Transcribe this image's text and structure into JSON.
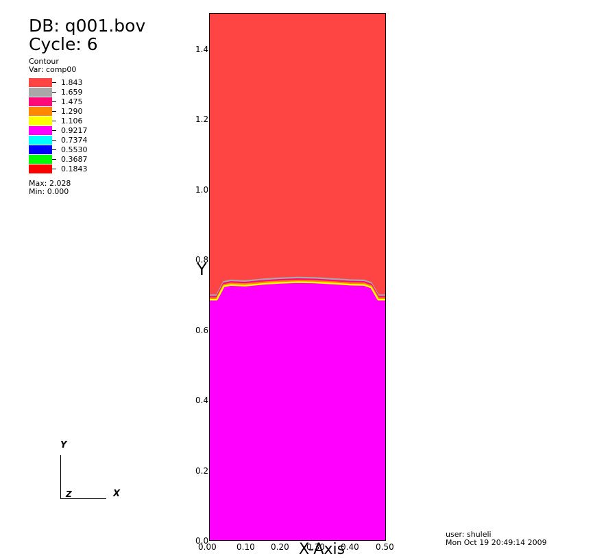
{
  "header": {
    "db_title": "DB: q001.bov",
    "cycle": "Cycle: 6"
  },
  "legend": {
    "heading": "Contour",
    "variable": "Var: comp00",
    "levels": [
      {
        "value": "1.843",
        "color": "#ff4444"
      },
      {
        "value": "1.659",
        "color": "#a8a8a8"
      },
      {
        "value": "1.475",
        "color": "#ff0a78"
      },
      {
        "value": "1.290",
        "color": "#ff8800"
      },
      {
        "value": "1.106",
        "color": "#ffff00"
      },
      {
        "value": "0.9217",
        "color": "#ff00ff"
      },
      {
        "value": "0.7374",
        "color": "#00ffff"
      },
      {
        "value": "0.5530",
        "color": "#0000ff"
      },
      {
        "value": "0.3687",
        "color": "#00ff00"
      },
      {
        "value": "0.1843",
        "color": "#ff0000"
      }
    ],
    "max": "Max: 2.028",
    "min": "Min: 0.000"
  },
  "plot": {
    "upper_color": "#ff4444",
    "lower_color": "#ff00ff",
    "interface_band_colors": [
      "#a8a8a8",
      "#ff0a78",
      "#ff8800",
      "#ffff00"
    ],
    "xlim": [
      0.0,
      0.5
    ],
    "ylim": [
      0.0,
      1.5
    ],
    "interface_profile": [
      [
        0.0,
        0.7
      ],
      [
        0.02,
        0.7
      ],
      [
        0.04,
        0.738
      ],
      [
        0.06,
        0.742
      ],
      [
        0.1,
        0.74
      ],
      [
        0.15,
        0.745
      ],
      [
        0.2,
        0.748
      ],
      [
        0.25,
        0.75
      ],
      [
        0.3,
        0.749
      ],
      [
        0.35,
        0.746
      ],
      [
        0.4,
        0.743
      ],
      [
        0.44,
        0.742
      ],
      [
        0.46,
        0.735
      ],
      [
        0.48,
        0.7
      ],
      [
        0.5,
        0.7
      ]
    ]
  },
  "axes": {
    "y_ticks": [
      "0.0",
      "0.2",
      "0.4",
      "0.6",
      "0.8",
      "1.0",
      "1.2",
      "1.4"
    ],
    "x_ticks": [
      "0.00",
      "0.10",
      "0.20",
      "0.30",
      "0.40",
      "0.50"
    ],
    "y_title": "Y",
    "x_title": "X-Axis"
  },
  "triad": {
    "y": "Y",
    "z": "Z",
    "x": "X"
  },
  "footer": {
    "user": "user: shuleli",
    "date": "Mon Oct 19 20:49:14 2009"
  }
}
